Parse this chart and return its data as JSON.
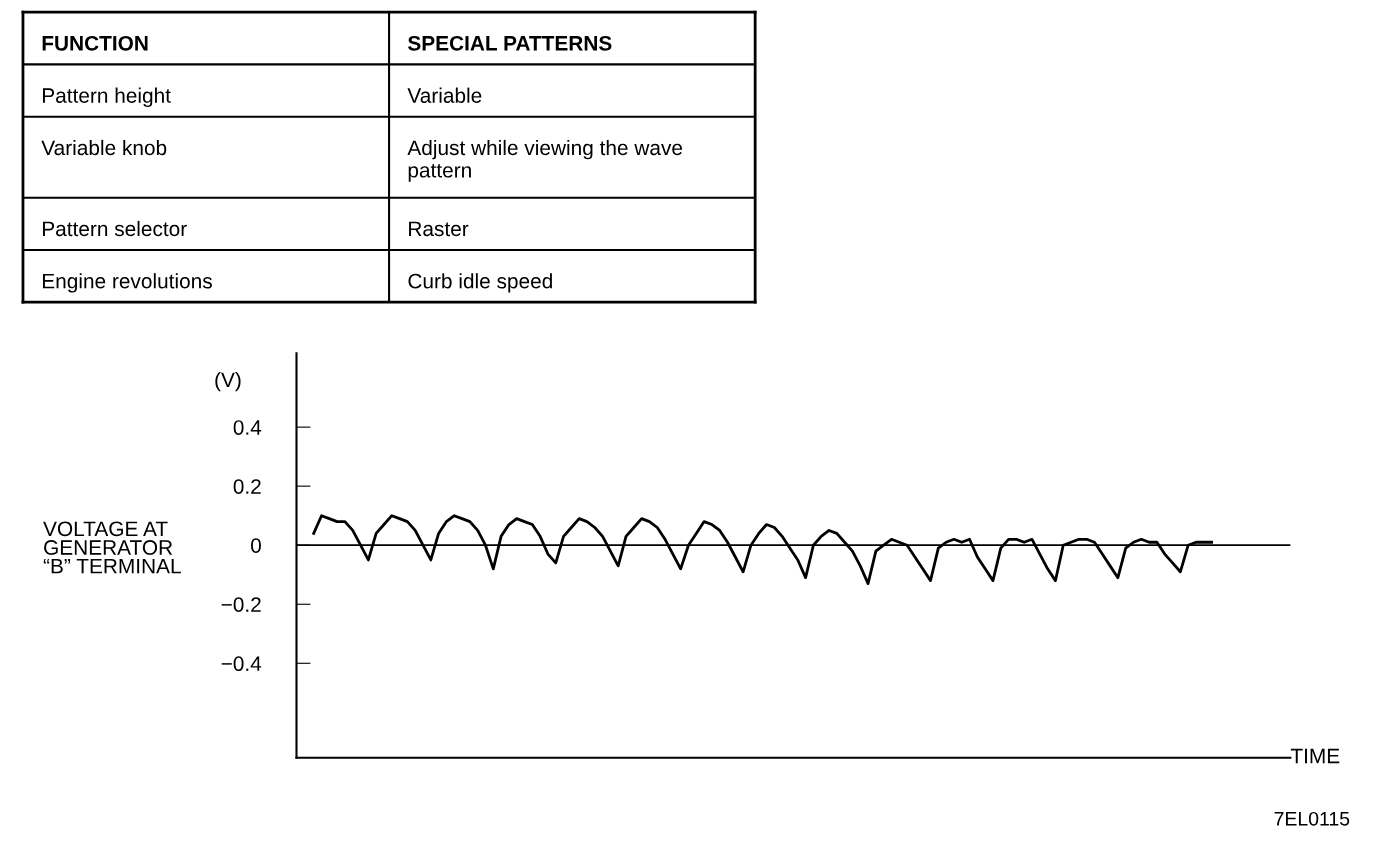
{
  "chart_data": [
    {
      "type": "other",
      "annotations": [
        "FUNCTION",
        "SPECIAL PATTERNS",
        "Pattern height",
        "Variable",
        "Variable knob",
        "Adjust while viewing the wave\npattern",
        "Pattern selector",
        "Raster",
        "Engine revolutions",
        "Curb idle speed"
      ]
    },
    {
      "type": "line",
      "ylabel": "VOLTAGE AT\nGENERATOR\n“B” TERMINAL",
      "xlabel": "TIME",
      "annotations": [
        "(V)",
        "7EL0115"
      ],
      "categories": [
        null,
        null,
        null,
        null,
        null,
        null,
        null,
        null,
        null,
        null,
        null,
        null,
        null,
        null,
        null,
        null,
        null,
        null,
        null,
        null,
        null,
        null,
        null,
        null,
        null,
        null,
        null,
        null,
        null,
        null,
        null,
        null,
        null,
        null,
        null,
        null,
        null,
        null,
        null,
        null,
        null,
        null,
        null,
        null,
        null,
        null,
        null,
        null,
        null,
        null,
        null,
        null,
        null,
        null,
        null,
        null,
        null,
        null,
        null,
        null,
        null,
        null,
        null,
        null,
        null,
        null,
        null,
        null,
        null,
        null,
        null,
        null,
        null,
        null,
        null,
        null,
        null,
        null,
        null,
        null,
        null,
        null,
        null,
        null,
        null,
        null,
        null,
        null,
        null,
        null,
        null,
        null,
        null,
        null,
        null,
        null,
        null,
        null,
        null,
        null,
        null,
        null,
        null,
        null,
        null,
        null,
        null,
        null,
        null,
        null,
        null,
        null,
        null,
        null,
        null,
        null
      ],
      "series": [
        {
          "color": "#000000",
          "values": [
            0.04,
            0.1,
            0.09,
            0.08,
            0.08,
            0.05,
            0.0,
            -0.05,
            0.04,
            0.07,
            0.1,
            0.09,
            0.08,
            0.05,
            0.0,
            -0.05,
            0.04,
            0.08,
            0.1,
            0.09,
            0.08,
            0.05,
            0.0,
            -0.08,
            0.03,
            0.07,
            0.09,
            0.08,
            0.07,
            0.03,
            -0.03,
            -0.06,
            0.03,
            0.06,
            0.09,
            0.08,
            0.06,
            0.03,
            -0.02,
            -0.07,
            0.03,
            0.06,
            0.09,
            0.08,
            0.06,
            0.02,
            -0.03,
            -0.08,
            0.0,
            0.04,
            0.08,
            0.07,
            0.05,
            0.01,
            -0.04,
            -0.09,
            0.0,
            0.04,
            0.07,
            0.06,
            0.03,
            -0.01,
            -0.05,
            -0.11,
            0.0,
            0.03,
            0.05,
            0.04,
            0.01,
            -0.02,
            -0.07,
            -0.13,
            -0.02,
            0.0,
            0.02,
            0.01,
            0.0,
            -0.04,
            -0.08,
            -0.12,
            -0.01,
            0.01,
            0.02,
            0.01,
            0.02,
            -0.04,
            -0.08,
            -0.12,
            -0.01,
            0.02,
            0.02,
            0.01,
            0.02,
            -0.03,
            -0.08,
            -0.12,
            0.0,
            0.01,
            0.02,
            0.02,
            0.01,
            -0.03,
            -0.07,
            -0.11,
            -0.01,
            0.01,
            0.02,
            0.01,
            0.01,
            -0.03,
            -0.06,
            -0.09,
            0.0,
            0.01,
            0.01,
            0.01
          ]
        }
      ],
      "ylim": [
        -0.72,
        0.65
      ],
      "yticks": [
        0.4,
        0.2,
        0,
        {
          "value": -0.2,
          "label": "−0.2"
        },
        {
          "value": -0.4,
          "label": "−0.4"
        }
      ],
      "ref_lines": [
        {
          "axis": "y",
          "value": 0,
          "color": "#000000"
        }
      ],
      "grid": false,
      "legend": false,
      "marker": "none",
      "line_style": "solid"
    }
  ]
}
